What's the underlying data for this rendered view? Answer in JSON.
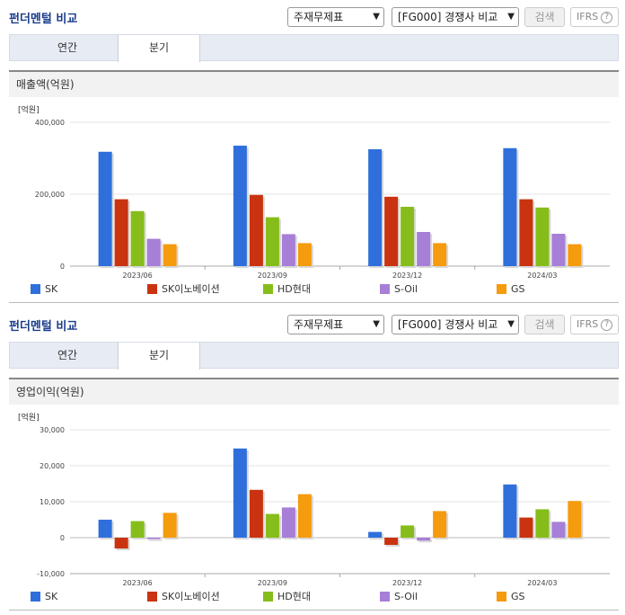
{
  "sections": [
    {
      "title": "펀더멘털 비교",
      "select1": "주재무제표",
      "select2": "[FG000] 경쟁사 비교",
      "search_btn": "검색",
      "ifrs": "IFRS",
      "ifrs_help": "?",
      "tabs": [
        "연간",
        "분기"
      ],
      "active_tab": 1,
      "subhead": "매출액(억원)",
      "unit": "[억원]"
    },
    {
      "title": "펀더멘털 비교",
      "select1": "주재무제표",
      "select2": "[FG000] 경쟁사 비교",
      "search_btn": "검색",
      "ifrs": "IFRS",
      "ifrs_help": "?",
      "tabs": [
        "연간",
        "분기"
      ],
      "active_tab": 1,
      "subhead": "영업이익(억원)",
      "unit": "[억원]"
    }
  ],
  "chart_data": [
    {
      "type": "bar",
      "ylabel": "[억원]",
      "categories": [
        "2023/06",
        "2023/09",
        "2023/12",
        "2024/03"
      ],
      "ylim": [
        0,
        400000
      ],
      "yticks": [
        0,
        200000,
        400000
      ],
      "ytick_labels": [
        "0",
        "200,000",
        "400,000"
      ],
      "legend_position": "bottom",
      "series": [
        {
          "name": "SK",
          "color": "#2f6fdc",
          "values": [
            318000,
            335000,
            325000,
            328000
          ]
        },
        {
          "name": "SK이노베이션",
          "color": "#c9330f",
          "values": [
            186000,
            198000,
            193000,
            186000
          ]
        },
        {
          "name": "HD현대",
          "color": "#86bd1a",
          "values": [
            153000,
            136000,
            165000,
            163000
          ]
        },
        {
          "name": "S-Oil",
          "color": "#a77fd6",
          "values": [
            76000,
            89000,
            95000,
            90000
          ]
        },
        {
          "name": "GS",
          "color": "#f59b0e",
          "values": [
            61000,
            64000,
            64000,
            61000
          ]
        }
      ]
    },
    {
      "type": "bar",
      "ylabel": "[억원]",
      "categories": [
        "2023/06",
        "2023/09",
        "2023/12",
        "2024/03"
      ],
      "ylim": [
        -10000,
        30000
      ],
      "yticks": [
        -10000,
        0,
        10000,
        20000,
        30000
      ],
      "ytick_labels": [
        "-10,000",
        "0",
        "10,000",
        "20,000",
        "30,000"
      ],
      "legend_position": "bottom",
      "series": [
        {
          "name": "SK",
          "color": "#2f6fdc",
          "values": [
            5000,
            24800,
            1600,
            14800
          ]
        },
        {
          "name": "SK이노베이션",
          "color": "#c9330f",
          "values": [
            -3000,
            13300,
            -2000,
            5600
          ]
        },
        {
          "name": "HD현대",
          "color": "#86bd1a",
          "values": [
            4600,
            6600,
            3400,
            7900
          ]
        },
        {
          "name": "S-Oil",
          "color": "#a77fd6",
          "values": [
            -400,
            8400,
            -800,
            4400
          ]
        },
        {
          "name": "GS",
          "color": "#f59b0e",
          "values": [
            6900,
            12100,
            7400,
            10200
          ]
        }
      ]
    }
  ]
}
